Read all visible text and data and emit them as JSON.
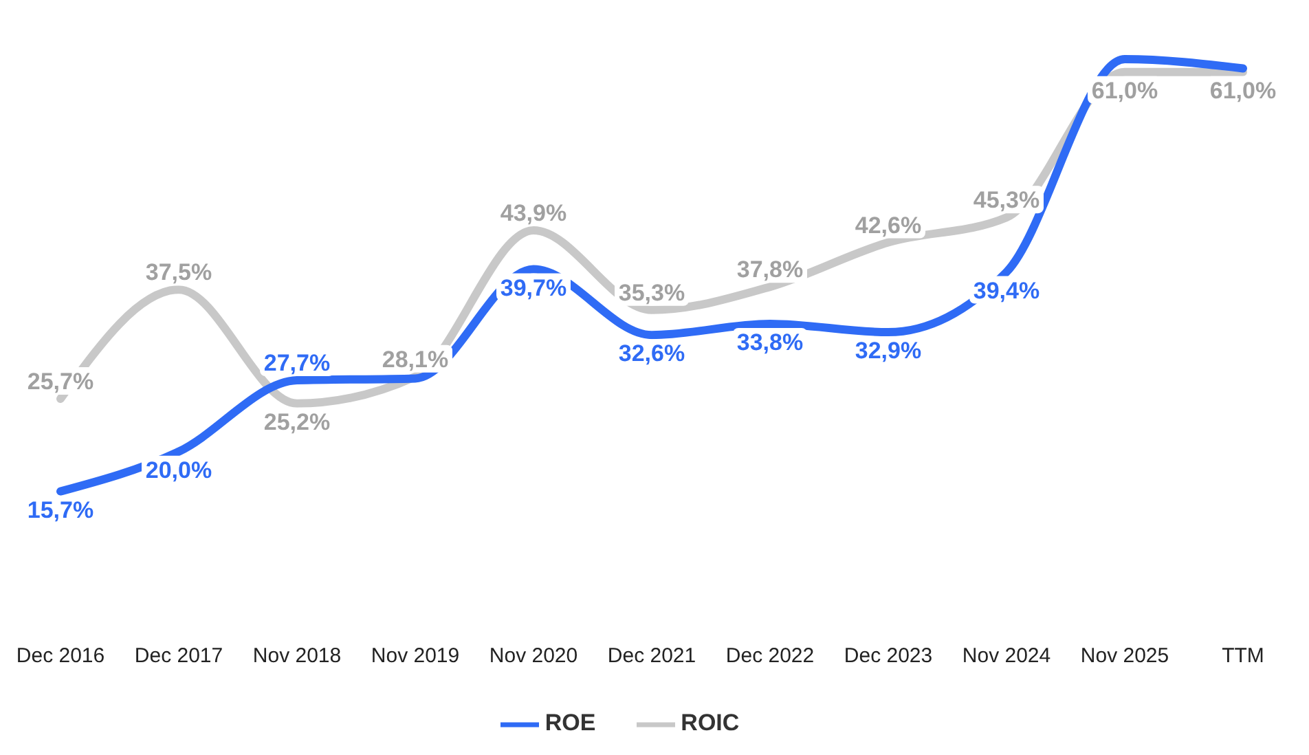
{
  "chart_data": {
    "type": "line",
    "categories": [
      "Dec 2016",
      "Dec 2017",
      "Nov 2018",
      "Nov 2019",
      "Nov 2020",
      "Dec 2021",
      "Dec 2022",
      "Dec 2023",
      "Nov 2024",
      "Nov 2025",
      "TTM"
    ],
    "series": [
      {
        "name": "ROE",
        "color": "#2f6bf5",
        "values": [
          15.7,
          20.0,
          27.7,
          27.9,
          39.7,
          32.6,
          33.8,
          32.9,
          39.4,
          62.4,
          61.4
        ],
        "value_labels": [
          "15,7%",
          "20,0%",
          "27,7%",
          null,
          "39,7%",
          "32,6%",
          "33,8%",
          "32,9%",
          "39,4%",
          null,
          null
        ]
      },
      {
        "name": "ROIC",
        "color": "#c8c8c8",
        "values": [
          25.7,
          37.5,
          25.2,
          28.1,
          43.9,
          35.3,
          37.8,
          42.6,
          45.3,
          61.0,
          61.0
        ],
        "value_labels": [
          "25,7%",
          "37,5%",
          "25,2%",
          "28,1%",
          "43,9%",
          "35,3%",
          "37,8%",
          "42,6%",
          "45,3%",
          "61,0%",
          "61,0%"
        ]
      }
    ],
    "legend": "bottom",
    "grid": false,
    "marker": "none",
    "line_style": "solid"
  }
}
